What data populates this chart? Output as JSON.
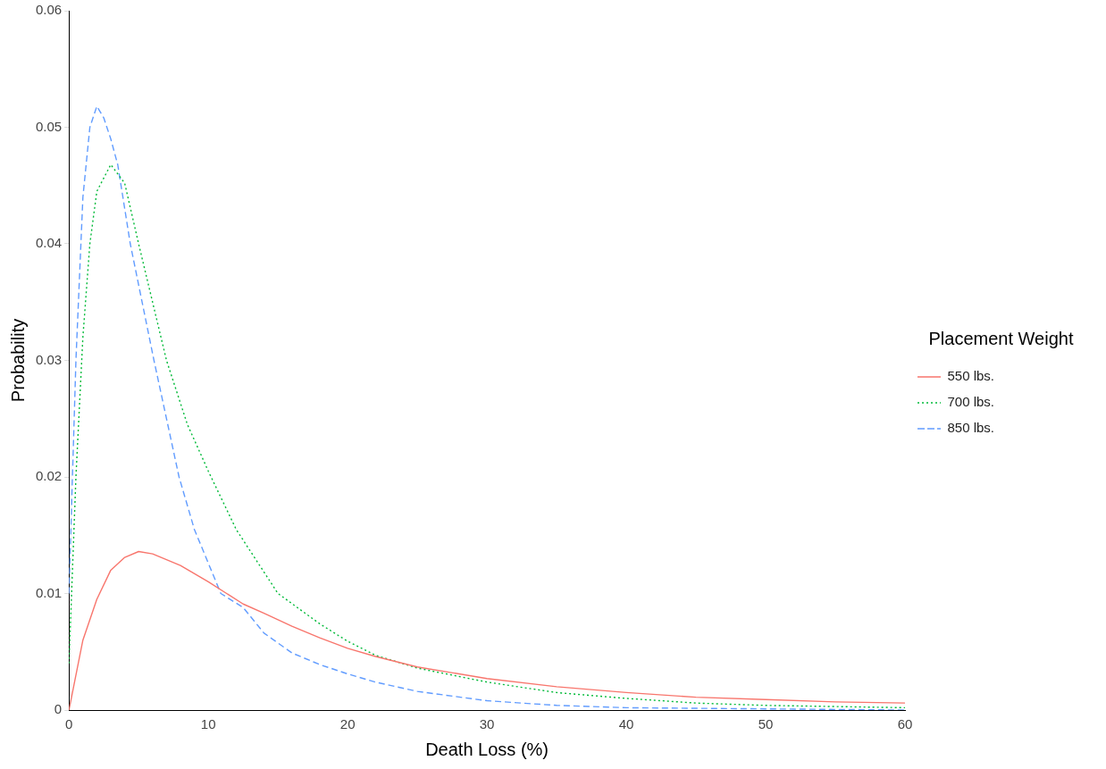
{
  "chart_data": {
    "type": "line",
    "xlabel": "Death Loss (%)",
    "ylabel": "Probability",
    "legend_title": "Placement Weight",
    "xlim": [
      0,
      60
    ],
    "xticks": [
      0,
      10,
      20,
      30,
      40,
      50,
      60
    ],
    "ylim": [
      0,
      0.06
    ],
    "yticks": [
      0,
      0.01,
      0.02,
      0.03,
      0.04,
      0.05,
      0.06
    ],
    "grid": false,
    "legend": "right",
    "marker": "none",
    "series": [
      {
        "name": "550 lbs.",
        "color": "#f8766d",
        "line_style": "solid",
        "x": [
          0,
          1,
          2,
          3,
          4,
          5,
          6,
          8,
          10,
          12.5,
          14,
          16,
          18,
          20,
          22,
          25,
          30,
          35,
          40,
          45,
          50,
          55,
          60
        ],
        "values": [
          0,
          0.006,
          0.0095,
          0.012,
          0.0131,
          0.0136,
          0.0134,
          0.0124,
          0.011,
          0.0091,
          0.0083,
          0.0072,
          0.0062,
          0.0053,
          0.0046,
          0.0037,
          0.0027,
          0.002,
          0.0015,
          0.0011,
          0.0009,
          0.0007,
          0.0006
        ]
      },
      {
        "name": "700 lbs.",
        "color": "#00ba38",
        "line_style": "dotted",
        "x": [
          0,
          0.5,
          1,
          1.5,
          2,
          3,
          4,
          5,
          7,
          8.5,
          10,
          12,
          15,
          18,
          20,
          22,
          25,
          30,
          35,
          40,
          45,
          50,
          55,
          60
        ],
        "values": [
          0.004,
          0.02,
          0.032,
          0.04,
          0.0445,
          0.0468,
          0.0452,
          0.04,
          0.03,
          0.0245,
          0.0205,
          0.0155,
          0.01,
          0.0074,
          0.0059,
          0.0047,
          0.0036,
          0.0024,
          0.0015,
          0.001,
          0.0006,
          0.0004,
          0.0003,
          0.0002
        ]
      },
      {
        "name": "850 lbs.",
        "color": "#619cff",
        "line_style": "dashed",
        "x": [
          0,
          0.5,
          1,
          1.5,
          2,
          2.5,
          3,
          3.5,
          4.4,
          6.1,
          7.9,
          9,
          10.9,
          12.5,
          14,
          16,
          18,
          20,
          22,
          25,
          30,
          35,
          40,
          50,
          60
        ],
        "values": [
          0.01,
          0.03,
          0.044,
          0.05,
          0.0518,
          0.0508,
          0.049,
          0.0468,
          0.04,
          0.03,
          0.02,
          0.0155,
          0.01,
          0.0088,
          0.0066,
          0.0049,
          0.0039,
          0.0031,
          0.0024,
          0.0016,
          0.0008,
          0.0004,
          0.0002,
          0.0001,
          0
        ]
      }
    ]
  }
}
